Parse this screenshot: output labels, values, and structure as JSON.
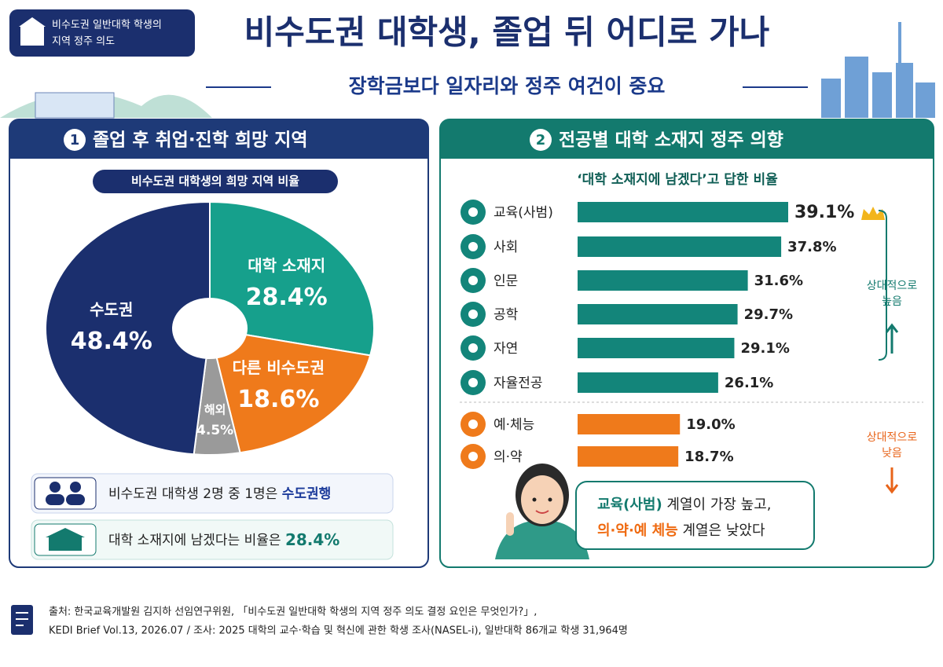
{
  "header": {
    "badge": [
      "비수도권 일반대학 학생의",
      "지역 정주 의도"
    ],
    "title": "비수도권 대학생, 졸업 뒤 어디로 가나",
    "subtitle": "장학금보다 일자리와 정주 여건이 중요"
  },
  "chart_data": [
    {
      "type": "donut",
      "section_number": "1",
      "section_title": "졸업 후 취업·진학 희망 지역",
      "title": "비수도권 대학생의 희망 지역 비율",
      "categories": [
        "대학 소재지",
        "다른 비수도권",
        "해외",
        "수도권"
      ],
      "values": [
        28.4,
        18.6,
        4.5,
        48.4
      ],
      "value_labels": [
        "28.4%",
        "18.6%",
        "4.5%",
        "48.4%"
      ],
      "colors": [
        "#16a08c",
        "#ef7a1b",
        "#9a9a9a",
        "#1b2f6e"
      ]
    },
    {
      "type": "hbar",
      "section_number": "2",
      "section_title": "전공별 대학 소재지 정주 의향",
      "title": "‘대학 소재지에 남겠다’고 답한 비율",
      "categories": [
        "교육(사범)",
        "사회",
        "인문",
        "공학",
        "자연",
        "자율전공",
        "예·체능",
        "의·약"
      ],
      "values": [
        39.1,
        37.8,
        31.6,
        29.7,
        29.1,
        26.1,
        19.0,
        18.7
      ],
      "value_labels": [
        "39.1%",
        "37.8%",
        "31.6%",
        "29.7%",
        "29.1%",
        "26.1%",
        "19.0%",
        "18.7%"
      ],
      "colors": [
        "#13857a",
        "#13857a",
        "#13857a",
        "#13857a",
        "#13857a",
        "#13857a",
        "#ef7a1b",
        "#ef7a1b"
      ],
      "annotations": [
        [
          "상대적으로",
          "높음"
        ],
        [
          "상대적으로",
          "낮음"
        ]
      ]
    }
  ],
  "summary": [
    {
      "text": "비수도권 대학생 2명 중 1명은 ",
      "highlight": "수도권행"
    },
    {
      "text": "대학 소재지에 남겠다는 비율은 ",
      "highlight": "28.4%"
    }
  ],
  "speech": [
    {
      "highlight": "교육(사범)",
      "text": " 계열이 가장 높고,"
    },
    {
      "highlight": "의·약·예 체능",
      "text": " 계열은 낮았다"
    }
  ],
  "footer": [
    "출처: 한국교육개발원 김지하 선임연구위원, 「비수도권 일반대학 학생의 지역 정주 의도 결정 요인은 무엇인가?」,",
    "KEDI Brief Vol.13, 2026.07   /   조사: 2025 대학의 교수·학습 및 혁신에 관한 학생 조사(NASEL-i), 일반대학 86개교 학생 31,964명"
  ]
}
